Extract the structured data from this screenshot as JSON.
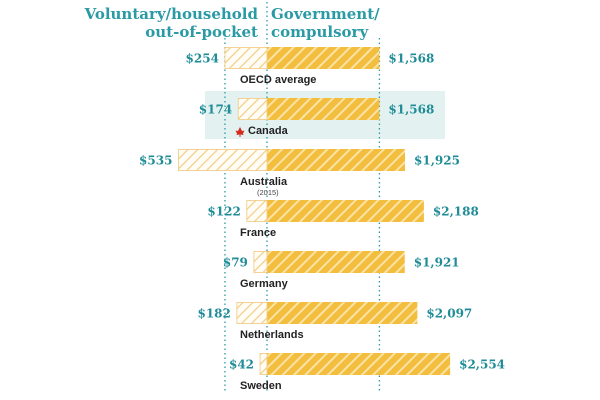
{
  "chart_data": {
    "type": "bar",
    "headers": {
      "left": [
        "Voluntary/household",
        "out-of-pocket"
      ],
      "right": [
        "Government/",
        "compulsory"
      ]
    },
    "series": [
      {
        "name": "Voluntary/household out-of-pocket",
        "values": [
          254,
          174,
          535,
          122,
          79,
          182,
          42
        ],
        "labels": [
          "$254",
          "$174",
          "$535",
          "$122",
          "$79",
          "$182",
          "$42"
        ]
      },
      {
        "name": "Government/compulsory",
        "values": [
          1568,
          1568,
          1925,
          2188,
          1921,
          2097,
          2554
        ],
        "labels": [
          "$1,568",
          "$1,568",
          "$1,925",
          "$2,188",
          "$1,921",
          "$2,097",
          "$2,554"
        ]
      }
    ],
    "categories": [
      "OECD average",
      "Canada",
      "Australia",
      "France",
      "Germany",
      "Netherlands",
      "Sweden"
    ],
    "notes": [
      "",
      "",
      "(2015)",
      "",
      "",
      "",
      ""
    ],
    "highlight": "Canada",
    "reference_line": "OECD average",
    "colors": {
      "accent": "#2a9aa5",
      "bar": "#f3bd3e",
      "bar_stripe": "#fbe3a6",
      "highlight_bg": "#e3f2f1",
      "flag": "#d62b1f"
    }
  }
}
